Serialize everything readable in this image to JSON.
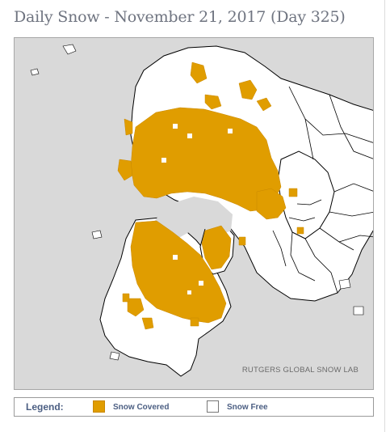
{
  "title": "Daily Snow - November 21, 2017 (Day 325)",
  "map": {
    "credit": "RUTGERS GLOBAL SNOW LAB",
    "colors": {
      "ocean": "#d9d9d9",
      "snow_free_land": "#ffffff",
      "snow_covered": "#e09d00",
      "borders": "#000000"
    }
  },
  "legend": {
    "label": "Legend:",
    "items": [
      {
        "label": "Snow Covered",
        "color": "#e09d00"
      },
      {
        "label": "Snow Free",
        "color": "#ffffff"
      }
    ]
  }
}
